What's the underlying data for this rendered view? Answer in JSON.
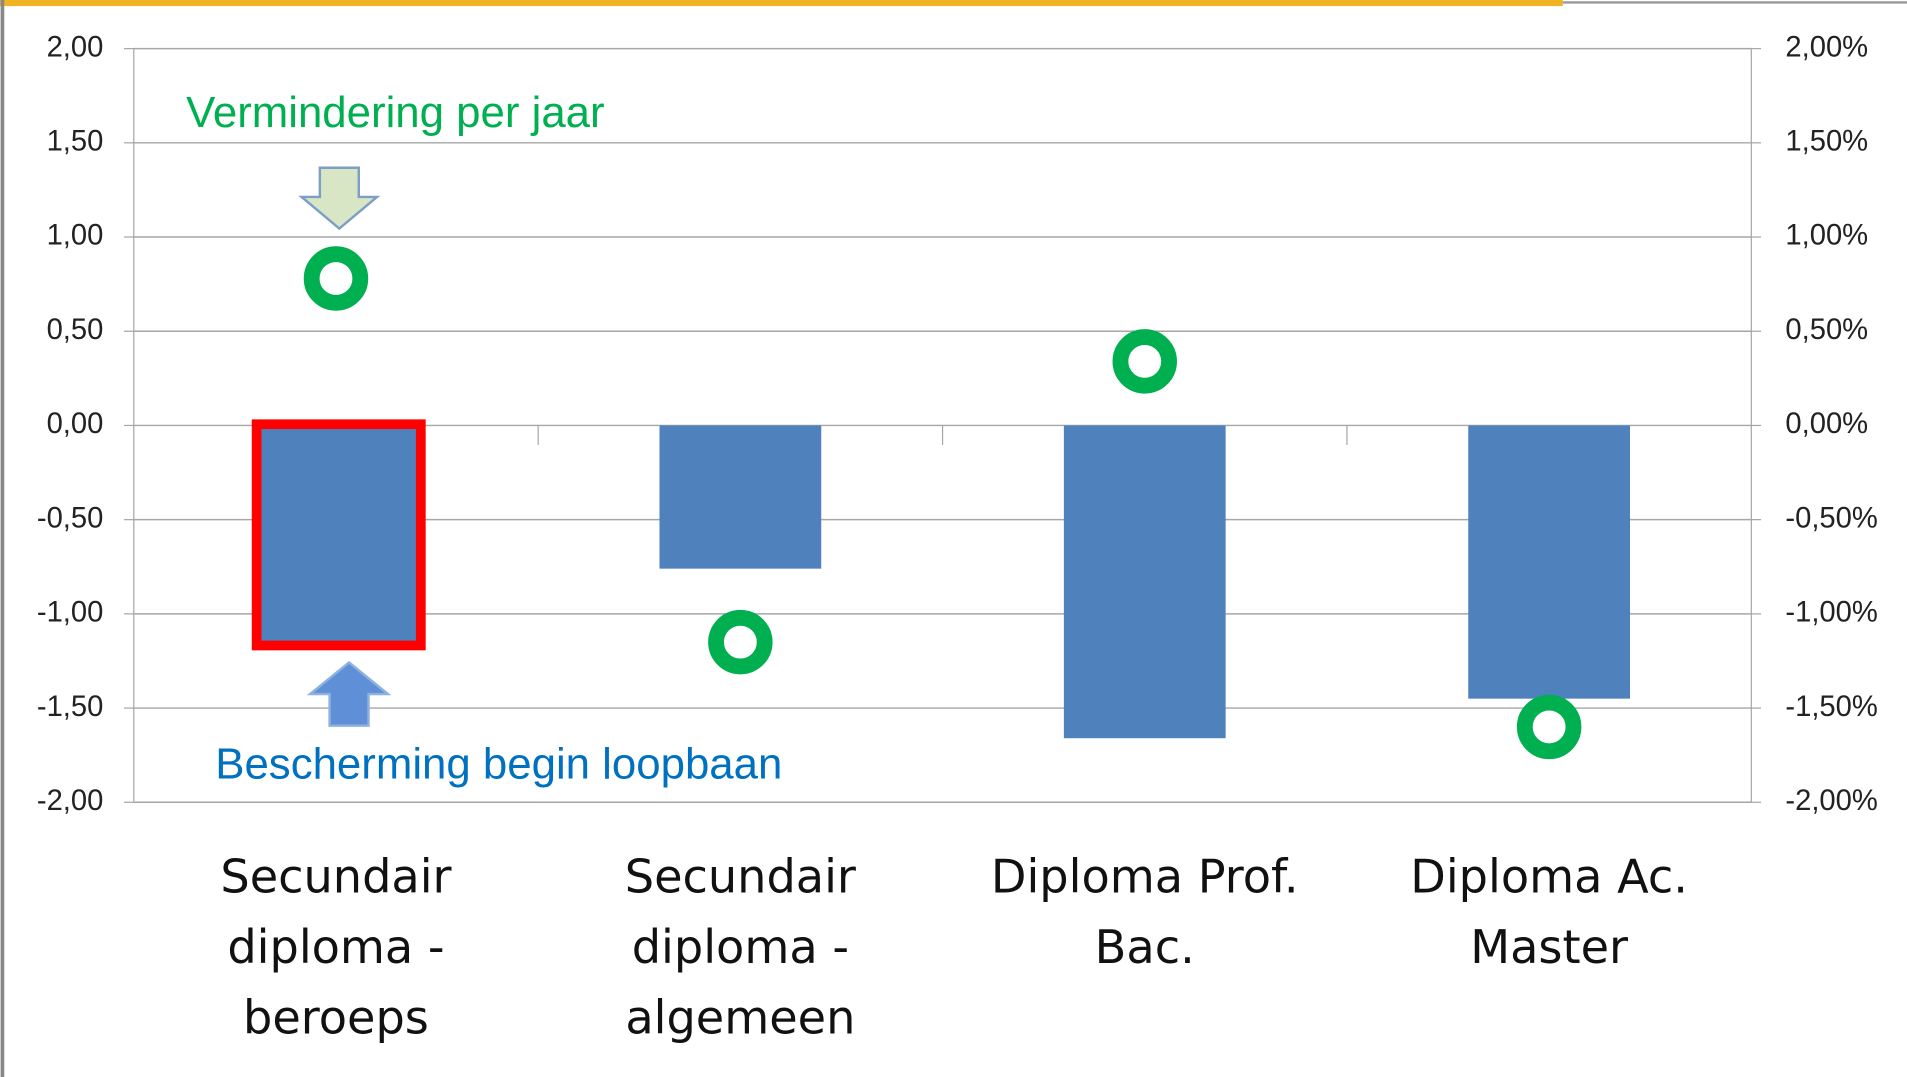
{
  "chart_data": {
    "type": "bar",
    "categories": [
      [
        "Secundair",
        "diploma -",
        "beroeps"
      ],
      [
        "Secundair",
        "diploma -",
        "algemeen"
      ],
      [
        "Diploma Prof.",
        "Bac."
      ],
      [
        "Diploma Ac.",
        "Master"
      ]
    ],
    "series": [
      {
        "type": "bar",
        "color": "#4f81bd",
        "values": [
          -1.15,
          -0.76,
          -1.66,
          -1.45
        ]
      },
      {
        "type": "scatter",
        "axis": "y2",
        "color": "#00b050",
        "values": [
          0.78,
          -1.15,
          0.34,
          -1.6
        ]
      }
    ],
    "ylim": [
      -2,
      2
    ],
    "yticks": [
      {
        "value": -2,
        "label": "-2,00"
      },
      {
        "value": -1.5,
        "label": "-1,50"
      },
      {
        "value": -1,
        "label": "-1,00"
      },
      {
        "value": -0.5,
        "label": "-0,50"
      },
      {
        "value": 0,
        "label": "0,00"
      },
      {
        "value": 0.5,
        "label": "0,50"
      },
      {
        "value": 1,
        "label": "1,00"
      },
      {
        "value": 1.5,
        "label": "1,50"
      },
      {
        "value": 2,
        "label": "2,00"
      }
    ],
    "y2lim": [
      -2,
      2
    ],
    "y2ticks": [
      {
        "value": -2,
        "label": "-2,00%"
      },
      {
        "value": -1.5,
        "label": "-1,50%"
      },
      {
        "value": -1,
        "label": "-1,00%"
      },
      {
        "value": -0.5,
        "label": "-0,50%"
      },
      {
        "value": 0,
        "label": "0,00%"
      },
      {
        "value": 0.5,
        "label": "0,50%"
      },
      {
        "value": 1,
        "label": "1,00%"
      },
      {
        "value": 1.5,
        "label": "1,50%"
      },
      {
        "value": 2,
        "label": "2,00%"
      }
    ],
    "grid": true,
    "annotations": [
      {
        "text": "Vermindering per jaar",
        "color": "#00b050"
      },
      {
        "text": "Bescherming begin loopbaan",
        "color": "#0070c0"
      }
    ]
  }
}
